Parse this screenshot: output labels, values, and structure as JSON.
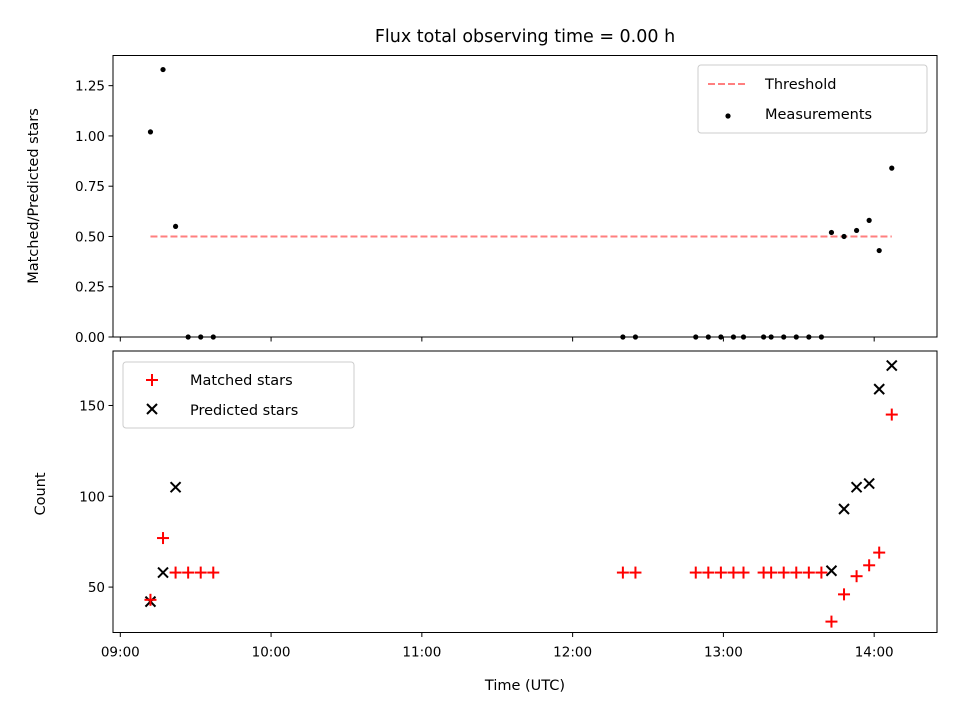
{
  "chart_data": [
    {
      "type": "scatter",
      "title": "Flux total observing time = 0.00 h",
      "xlabel": "",
      "ylabel": "Matched/Predicted stars",
      "ylim": [
        0,
        1.4
      ],
      "xlim": [
        "09:00",
        "14:25"
      ],
      "yticks": [
        "0.00",
        "0.25",
        "0.50",
        "0.75",
        "1.00",
        "1.25"
      ],
      "legend_position": "top-right",
      "threshold": {
        "name": "Threshold",
        "value": 0.5,
        "x_start": "09:12",
        "x_end": "14:07",
        "color": "#ff7f7f",
        "style": "dashed"
      },
      "series": [
        {
          "name": "Measurements",
          "color": "#000000",
          "marker": "dot",
          "points": [
            {
              "x": "09:12",
              "y": 1.02
            },
            {
              "x": "09:17",
              "y": 1.33
            },
            {
              "x": "09:22",
              "y": 0.55
            },
            {
              "x": "09:27",
              "y": 0.0
            },
            {
              "x": "09:32",
              "y": 0.0
            },
            {
              "x": "09:37",
              "y": 0.0
            },
            {
              "x": "12:20",
              "y": 0.0
            },
            {
              "x": "12:25",
              "y": 0.0
            },
            {
              "x": "12:49",
              "y": 0.0
            },
            {
              "x": "12:54",
              "y": 0.0
            },
            {
              "x": "12:59",
              "y": 0.0
            },
            {
              "x": "13:04",
              "y": 0.0
            },
            {
              "x": "13:08",
              "y": 0.0
            },
            {
              "x": "13:16",
              "y": 0.0
            },
            {
              "x": "13:19",
              "y": 0.0
            },
            {
              "x": "13:24",
              "y": 0.0
            },
            {
              "x": "13:29",
              "y": 0.0
            },
            {
              "x": "13:34",
              "y": 0.0
            },
            {
              "x": "13:39",
              "y": 0.0
            },
            {
              "x": "13:43",
              "y": 0.52
            },
            {
              "x": "13:48",
              "y": 0.5
            },
            {
              "x": "13:53",
              "y": 0.53
            },
            {
              "x": "13:58",
              "y": 0.58
            },
            {
              "x": "14:02",
              "y": 0.43
            },
            {
              "x": "14:07",
              "y": 0.84
            }
          ]
        }
      ]
    },
    {
      "type": "scatter",
      "title": "",
      "xlabel": "Time (UTC)",
      "ylabel": "Count",
      "ylim": [
        25,
        180
      ],
      "xlim": [
        "09:00",
        "14:25"
      ],
      "yticks": [
        "50",
        "100",
        "150"
      ],
      "xticks": [
        "09:00",
        "10:00",
        "11:00",
        "12:00",
        "13:00",
        "14:00"
      ],
      "legend_position": "top-left",
      "series": [
        {
          "name": "Matched stars",
          "color": "#ff0000",
          "marker": "plus",
          "points": [
            {
              "x": "09:12",
              "y": 43
            },
            {
              "x": "09:17",
              "y": 77
            },
            {
              "x": "09:22",
              "y": 58
            },
            {
              "x": "09:27",
              "y": 58
            },
            {
              "x": "09:32",
              "y": 58
            },
            {
              "x": "09:37",
              "y": 58
            },
            {
              "x": "12:20",
              "y": 58
            },
            {
              "x": "12:25",
              "y": 58
            },
            {
              "x": "12:49",
              "y": 58
            },
            {
              "x": "12:54",
              "y": 58
            },
            {
              "x": "12:59",
              "y": 58
            },
            {
              "x": "13:04",
              "y": 58
            },
            {
              "x": "13:08",
              "y": 58
            },
            {
              "x": "13:16",
              "y": 58
            },
            {
              "x": "13:19",
              "y": 58
            },
            {
              "x": "13:24",
              "y": 58
            },
            {
              "x": "13:29",
              "y": 58
            },
            {
              "x": "13:34",
              "y": 58
            },
            {
              "x": "13:39",
              "y": 58
            },
            {
              "x": "13:43",
              "y": 31
            },
            {
              "x": "13:48",
              "y": 46
            },
            {
              "x": "13:53",
              "y": 56
            },
            {
              "x": "13:58",
              "y": 62
            },
            {
              "x": "14:02",
              "y": 69
            },
            {
              "x": "14:07",
              "y": 145
            }
          ]
        },
        {
          "name": "Predicted stars",
          "color": "#000000",
          "marker": "x",
          "points": [
            {
              "x": "09:12",
              "y": 42
            },
            {
              "x": "09:17",
              "y": 58
            },
            {
              "x": "09:22",
              "y": 105
            },
            {
              "x": "13:43",
              "y": 59
            },
            {
              "x": "13:48",
              "y": 93
            },
            {
              "x": "13:53",
              "y": 105
            },
            {
              "x": "13:58",
              "y": 107
            },
            {
              "x": "14:02",
              "y": 159
            },
            {
              "x": "14:07",
              "y": 172
            }
          ]
        }
      ]
    }
  ]
}
